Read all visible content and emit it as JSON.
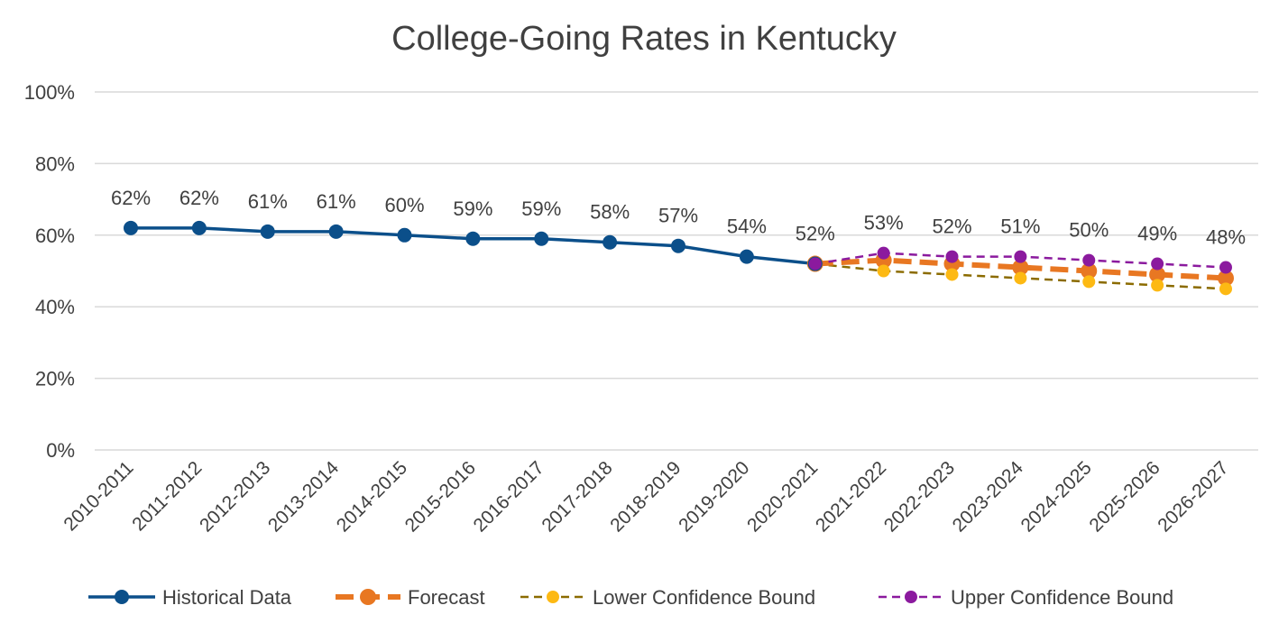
{
  "chart_data": {
    "type": "line",
    "title": "College-Going Rates in Kentucky",
    "xlabel": "",
    "ylabel": "",
    "ylim": [
      0,
      100
    ],
    "y_ticks": [
      "0%",
      "20%",
      "40%",
      "60%",
      "80%",
      "100%"
    ],
    "y_tick_values": [
      0,
      20,
      40,
      60,
      80,
      100
    ],
    "grid": true,
    "legend_position": "bottom",
    "categories": [
      "2010-2011",
      "2011-2012",
      "2012-2013",
      "2013-2014",
      "2014-2015",
      "2015-2016",
      "2016-2017",
      "2017-2018",
      "2018-2019",
      "2019-2020",
      "2020-2021",
      "2021-2022",
      "2022-2023",
      "2023-2024",
      "2024-2025",
      "2025-2026",
      "2026-2027"
    ],
    "series": [
      {
        "name": "Historical Data",
        "color": "#0b4f8a",
        "style": "solid",
        "values": [
          62,
          62,
          61,
          61,
          60,
          59,
          59,
          58,
          57,
          54,
          52,
          null,
          null,
          null,
          null,
          null,
          null
        ]
      },
      {
        "name": "Forecast",
        "color": "#e87722",
        "style": "dashed-thick",
        "values": [
          null,
          null,
          null,
          null,
          null,
          null,
          null,
          null,
          null,
          null,
          52,
          53,
          52,
          51,
          50,
          49,
          48
        ]
      },
      {
        "name": "Lower Confidence Bound",
        "color": "#fdb913",
        "line_color": "#8b6b00",
        "style": "dashed",
        "values": [
          null,
          null,
          null,
          null,
          null,
          null,
          null,
          null,
          null,
          null,
          52,
          50,
          49,
          48,
          47,
          46,
          45
        ]
      },
      {
        "name": "Upper Confidence Bound",
        "color": "#8b1a9e",
        "style": "dashed",
        "values": [
          null,
          null,
          null,
          null,
          null,
          null,
          null,
          null,
          null,
          null,
          52,
          55,
          54,
          54,
          53,
          52,
          51
        ]
      }
    ],
    "data_labels": [
      "62%",
      "62%",
      "61%",
      "61%",
      "60%",
      "59%",
      "59%",
      "58%",
      "57%",
      "54%",
      "52%",
      "53%",
      "52%",
      "51%",
      "50%",
      "49%",
      "48%"
    ],
    "colors": {
      "gridline": "#d9d9d9",
      "text": "#404040"
    }
  }
}
